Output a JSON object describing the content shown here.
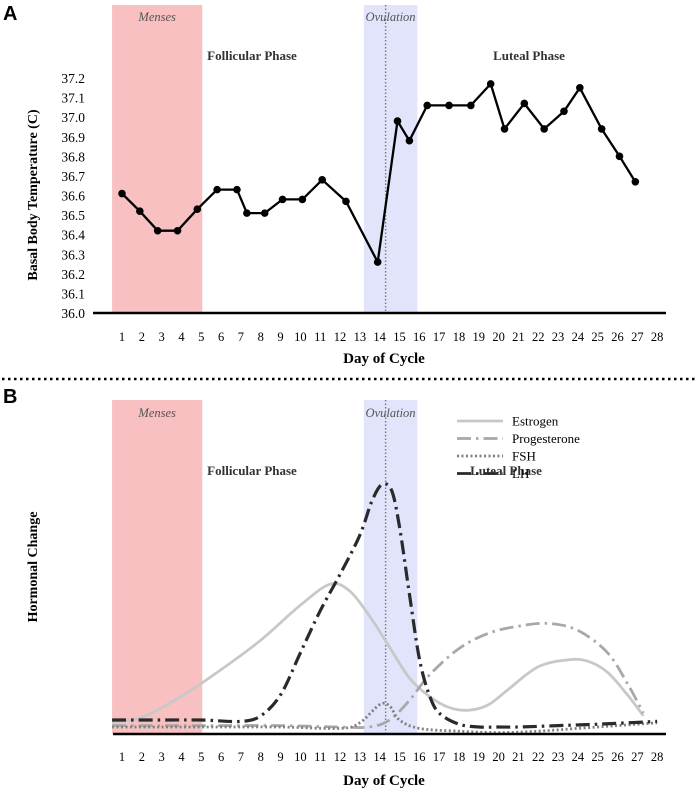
{
  "chart_data": [
    {
      "panel_label": "A",
      "type": "line",
      "title": "",
      "xlabel": "Day of Cycle",
      "ylabel": "Basal Body Temperature (C)",
      "x": [
        1,
        2,
        3,
        4,
        5,
        6,
        7,
        8,
        9,
        10,
        11,
        12,
        13,
        14,
        15,
        16,
        17,
        18,
        19,
        20,
        21,
        22,
        23,
        24,
        25,
        26,
        27,
        28
      ],
      "xlim": [
        1,
        28
      ],
      "ylim": [
        36.0,
        37.2
      ],
      "yticks": [
        "36.0",
        "36.1",
        "36.2",
        "36.3",
        "36.4",
        "36.5",
        "36.6",
        "36.7",
        "36.8",
        "36.9",
        "37.0",
        "37.1",
        "37.2"
      ],
      "series": [
        {
          "name": "Basal Body Temperature",
          "color": "#000000",
          "points": [
            {
              "x": 1,
              "y": 36.61
            },
            {
              "x": 1.9,
              "y": 36.52
            },
            {
              "x": 2.8,
              "y": 36.42
            },
            {
              "x": 3.8,
              "y": 36.42
            },
            {
              "x": 4.8,
              "y": 36.53
            },
            {
              "x": 5.8,
              "y": 36.63
            },
            {
              "x": 6.8,
              "y": 36.63
            },
            {
              "x": 7.3,
              "y": 36.51
            },
            {
              "x": 8.2,
              "y": 36.51
            },
            {
              "x": 9.1,
              "y": 36.58
            },
            {
              "x": 10.1,
              "y": 36.58
            },
            {
              "x": 11.1,
              "y": 36.68
            },
            {
              "x": 12.3,
              "y": 36.57
            },
            {
              "x": 13.9,
              "y": 36.26
            },
            {
              "x": 14.9,
              "y": 36.98
            },
            {
              "x": 15.5,
              "y": 36.88
            },
            {
              "x": 16.4,
              "y": 37.06
            },
            {
              "x": 17.5,
              "y": 37.06
            },
            {
              "x": 18.6,
              "y": 37.06
            },
            {
              "x": 19.6,
              "y": 37.17
            },
            {
              "x": 20.3,
              "y": 36.94
            },
            {
              "x": 21.3,
              "y": 37.07
            },
            {
              "x": 22.3,
              "y": 36.94
            },
            {
              "x": 23.3,
              "y": 37.03
            },
            {
              "x": 24.1,
              "y": 37.15
            },
            {
              "x": 25.2,
              "y": 36.94
            },
            {
              "x": 26.1,
              "y": 36.8
            },
            {
              "x": 26.9,
              "y": 36.67
            }
          ]
        }
      ],
      "phases": [
        {
          "name": "Menses",
          "start": 0.5,
          "end": 5.05,
          "color": "#f8c0c0"
        },
        {
          "name": "Ovulation",
          "start": 13.2,
          "end": 15.9,
          "color": "#e2e4fb"
        }
      ],
      "phase_labels": [
        "Follicular Phase",
        "Luteal Phase"
      ],
      "ovulation_day": 14.3
    },
    {
      "panel_label": "B",
      "type": "line",
      "title": "",
      "xlabel": "Day of Cycle",
      "ylabel": "Hormonal Change",
      "x": [
        1,
        2,
        3,
        4,
        5,
        6,
        7,
        8,
        9,
        10,
        11,
        12,
        13,
        14,
        15,
        16,
        17,
        18,
        19,
        20,
        21,
        22,
        23,
        24,
        25,
        26,
        27,
        28
      ],
      "xlim": [
        1,
        28
      ],
      "ylim": [
        0,
        100
      ],
      "yticks": [],
      "legend_position": "top-right",
      "series": [
        {
          "name": "Estrogen",
          "color": "#c8c8c8",
          "style": "solid",
          "points": [
            {
              "x": 0.5,
              "y": 4.2
            },
            {
              "x": 2,
              "y": 6
            },
            {
              "x": 4,
              "y": 13.5
            },
            {
              "x": 6,
              "y": 23
            },
            {
              "x": 8,
              "y": 33.5
            },
            {
              "x": 10,
              "y": 46
            },
            {
              "x": 11.5,
              "y": 53.5
            },
            {
              "x": 12.5,
              "y": 51
            },
            {
              "x": 13.5,
              "y": 42
            },
            {
              "x": 14.5,
              "y": 31
            },
            {
              "x": 15.5,
              "y": 20
            },
            {
              "x": 16.5,
              "y": 13.5
            },
            {
              "x": 17.5,
              "y": 9.5
            },
            {
              "x": 18.5,
              "y": 8.5
            },
            {
              "x": 19.5,
              "y": 10.5
            },
            {
              "x": 20.5,
              "y": 16
            },
            {
              "x": 22,
              "y": 24
            },
            {
              "x": 23.5,
              "y": 26.5
            },
            {
              "x": 24.5,
              "y": 26
            },
            {
              "x": 25.5,
              "y": 22
            },
            {
              "x": 26.5,
              "y": 14
            },
            {
              "x": 27.3,
              "y": 6.5
            }
          ]
        },
        {
          "name": "Progesterone",
          "color": "#a8a8a8",
          "style": "dashdot",
          "points": [
            {
              "x": 0.5,
              "y": 3
            },
            {
              "x": 3,
              "y": 3
            },
            {
              "x": 6,
              "y": 3
            },
            {
              "x": 9,
              "y": 3
            },
            {
              "x": 12,
              "y": 2.5
            },
            {
              "x": 13.5,
              "y": 2.5
            },
            {
              "x": 14.5,
              "y": 5
            },
            {
              "x": 15.5,
              "y": 12
            },
            {
              "x": 16.5,
              "y": 21
            },
            {
              "x": 18,
              "y": 30.5
            },
            {
              "x": 19.5,
              "y": 36
            },
            {
              "x": 21,
              "y": 38.5
            },
            {
              "x": 22.5,
              "y": 39.5
            },
            {
              "x": 24,
              "y": 37
            },
            {
              "x": 25.5,
              "y": 29
            },
            {
              "x": 26.5,
              "y": 18
            },
            {
              "x": 27.3,
              "y": 7.5
            }
          ]
        },
        {
          "name": "FSH",
          "color": "#808080",
          "style": "dotted",
          "points": [
            {
              "x": 0.5,
              "y": 2.5
            },
            {
              "x": 3,
              "y": 2.5
            },
            {
              "x": 6,
              "y": 2.5
            },
            {
              "x": 9,
              "y": 2.5
            },
            {
              "x": 12,
              "y": 2
            },
            {
              "x": 13,
              "y": 4
            },
            {
              "x": 14,
              "y": 10.5
            },
            {
              "x": 14.5,
              "y": 10
            },
            {
              "x": 15,
              "y": 5
            },
            {
              "x": 16,
              "y": 2
            },
            {
              "x": 18,
              "y": 1
            },
            {
              "x": 20,
              "y": 0.5
            },
            {
              "x": 22,
              "y": 1
            },
            {
              "x": 24,
              "y": 2
            },
            {
              "x": 26,
              "y": 3
            },
            {
              "x": 28,
              "y": 4
            }
          ]
        },
        {
          "name": "LH",
          "color": "#2a2a2a",
          "style": "dashdot",
          "points": [
            {
              "x": 0.5,
              "y": 5
            },
            {
              "x": 3,
              "y": 5
            },
            {
              "x": 5,
              "y": 5
            },
            {
              "x": 7,
              "y": 4.5
            },
            {
              "x": 8,
              "y": 6.5
            },
            {
              "x": 9,
              "y": 14
            },
            {
              "x": 10,
              "y": 29
            },
            {
              "x": 11,
              "y": 44
            },
            {
              "x": 12,
              "y": 57
            },
            {
              "x": 13,
              "y": 71
            },
            {
              "x": 13.6,
              "y": 83
            },
            {
              "x": 14.1,
              "y": 89
            },
            {
              "x": 14.6,
              "y": 87
            },
            {
              "x": 15,
              "y": 74
            },
            {
              "x": 15.5,
              "y": 50
            },
            {
              "x": 16,
              "y": 27
            },
            {
              "x": 16.5,
              "y": 14
            },
            {
              "x": 17,
              "y": 7.5
            },
            {
              "x": 18,
              "y": 3.5
            },
            {
              "x": 19,
              "y": 2.5
            },
            {
              "x": 20,
              "y": 2.5
            },
            {
              "x": 21,
              "y": 2.5
            },
            {
              "x": 23,
              "y": 3
            },
            {
              "x": 25,
              "y": 3.5
            },
            {
              "x": 28,
              "y": 4.5
            }
          ]
        }
      ],
      "phases": [
        {
          "name": "Menses",
          "start": 0.5,
          "end": 5.05,
          "color": "#f8c0c0"
        },
        {
          "name": "Ovulation",
          "start": 13.2,
          "end": 15.9,
          "color": "#e2e4fb"
        }
      ],
      "phase_labels": [
        "Follicular Phase",
        "Luteal Phase"
      ],
      "ovulation_day": 14.3
    }
  ]
}
